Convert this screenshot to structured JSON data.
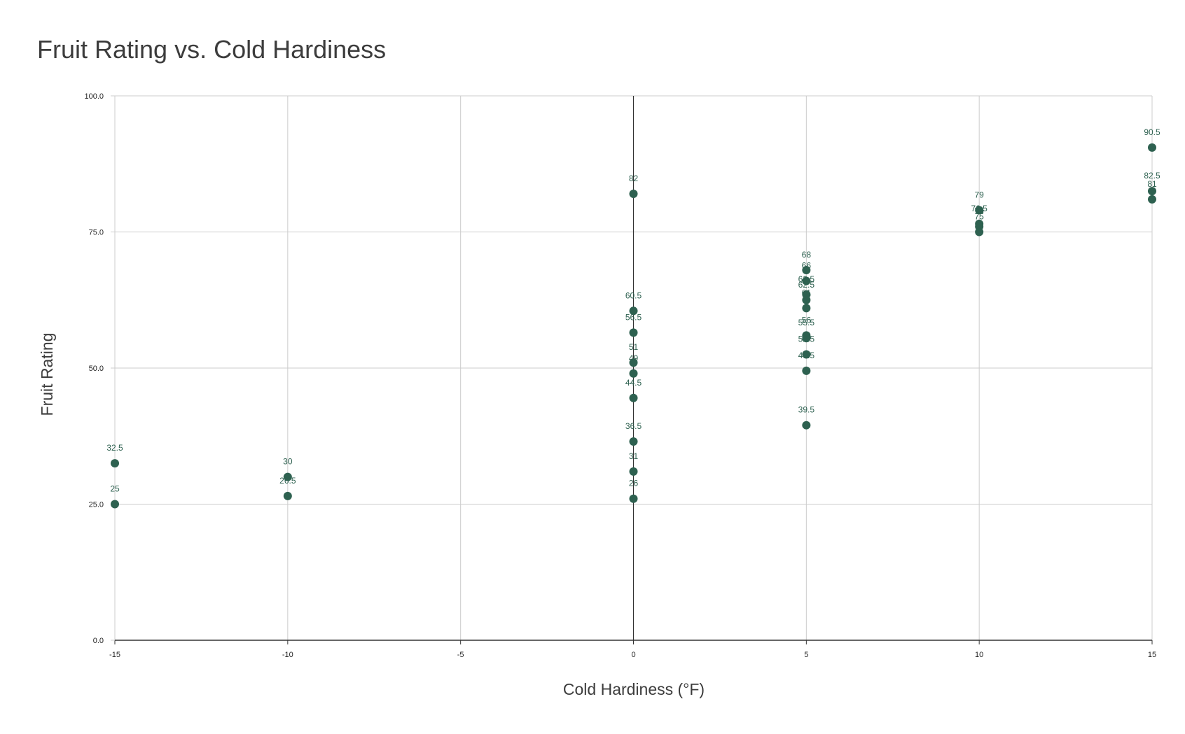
{
  "chart_data": {
    "type": "scatter",
    "title": "Fruit Rating vs. Cold Hardiness",
    "xlabel": "Cold Hardiness (°F)",
    "ylabel": "Fruit Rating",
    "xlim": [
      -15,
      15
    ],
    "ylim": [
      0,
      100
    ],
    "x_ticks": [
      -15,
      -10,
      -5,
      0,
      5,
      10,
      15
    ],
    "x_tick_labels": [
      "-15",
      "-10",
      "-5",
      "0",
      "5",
      "10",
      "15"
    ],
    "y_ticks": [
      0,
      25,
      50,
      75,
      100
    ],
    "y_tick_labels": [
      "0.0",
      "25.0",
      "50.0",
      "75.0",
      "100.0"
    ],
    "grid": true,
    "point_color": "#2e6150",
    "gridline_color": "#cccccc",
    "axis_color": "#333333",
    "points": [
      {
        "x": -15,
        "y": 32.5,
        "label": "32.5"
      },
      {
        "x": -15,
        "y": 25,
        "label": "25"
      },
      {
        "x": -10,
        "y": 30,
        "label": "30"
      },
      {
        "x": -10,
        "y": 26.5,
        "label": "26.5"
      },
      {
        "x": 0,
        "y": 82,
        "label": "82"
      },
      {
        "x": 0,
        "y": 60.5,
        "label": "60.5"
      },
      {
        "x": 0,
        "y": 56.5,
        "label": "56.5"
      },
      {
        "x": 0,
        "y": 51,
        "label": "51"
      },
      {
        "x": 0,
        "y": 49,
        "label": "49"
      },
      {
        "x": 0,
        "y": 44.5,
        "label": "44.5"
      },
      {
        "x": 0,
        "y": 36.5,
        "label": "36.5"
      },
      {
        "x": 0,
        "y": 31,
        "label": "31"
      },
      {
        "x": 0,
        "y": 26,
        "label": "26"
      },
      {
        "x": 5,
        "y": 68,
        "label": "68"
      },
      {
        "x": 5,
        "y": 66,
        "label": "66"
      },
      {
        "x": 5,
        "y": 63.5,
        "label": "63.5"
      },
      {
        "x": 5,
        "y": 62.5,
        "label": "62.5"
      },
      {
        "x": 5,
        "y": 61,
        "label": "61"
      },
      {
        "x": 5,
        "y": 56,
        "label": "56"
      },
      {
        "x": 5,
        "y": 55.5,
        "label": "55.5"
      },
      {
        "x": 5,
        "y": 52.5,
        "label": "52.5"
      },
      {
        "x": 5,
        "y": 49.5,
        "label": "49.5"
      },
      {
        "x": 5,
        "y": 39.5,
        "label": "39.5"
      },
      {
        "x": 10,
        "y": 79,
        "label": "79"
      },
      {
        "x": 10,
        "y": 76.5,
        "label": "76.5"
      },
      {
        "x": 10,
        "y": 76,
        "label": "76"
      },
      {
        "x": 10,
        "y": 75,
        "label": "75"
      },
      {
        "x": 15,
        "y": 90.5,
        "label": "90.5"
      },
      {
        "x": 15,
        "y": 82.5,
        "label": "82.5"
      },
      {
        "x": 15,
        "y": 81,
        "label": "81"
      }
    ]
  }
}
